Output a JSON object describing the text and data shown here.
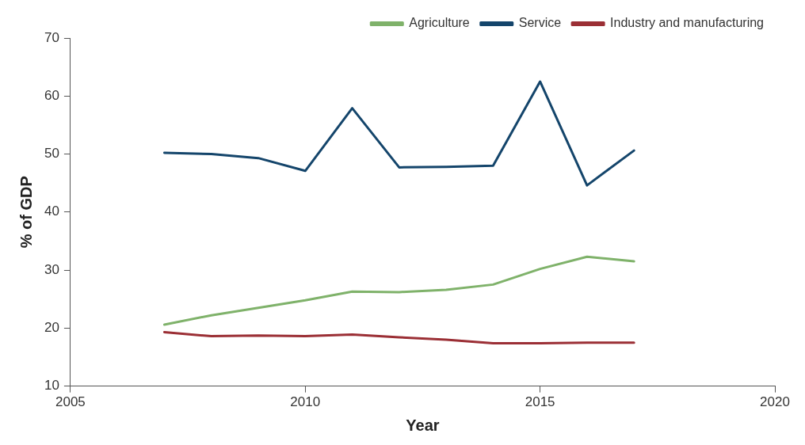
{
  "chart_data": {
    "type": "line",
    "xlabel": "Year",
    "ylabel": "% of GDP",
    "x": [
      2007,
      2008,
      2009,
      2010,
      2011,
      2012,
      2013,
      2014,
      2015,
      2016,
      2017
    ],
    "series": [
      {
        "name": "Agriculture",
        "color": "#7fb26a",
        "values": [
          20.6,
          22.2,
          23.5,
          24.8,
          26.3,
          26.2,
          26.6,
          27.5,
          30.2,
          32.3,
          31.5
        ]
      },
      {
        "name": "Service",
        "color": "#14456b",
        "values": [
          50.2,
          50.0,
          49.3,
          47.1,
          57.9,
          47.7,
          47.8,
          48.0,
          62.5,
          44.6,
          50.6
        ]
      },
      {
        "name": "Industry and manufacturing",
        "color": "#9b2f35",
        "values": [
          19.3,
          18.6,
          18.7,
          18.6,
          18.9,
          18.4,
          18.0,
          17.4,
          17.4,
          17.5,
          17.5
        ]
      }
    ],
    "xlim": [
      2005,
      2020
    ],
    "xticks": [
      2005,
      2010,
      2015,
      2020
    ],
    "ylim": [
      10,
      70
    ],
    "yticks": [
      10,
      20,
      30,
      40,
      50,
      60,
      70
    ],
    "grid": false,
    "legend": "top right",
    "marker": "none",
    "line_style": "solid"
  }
}
